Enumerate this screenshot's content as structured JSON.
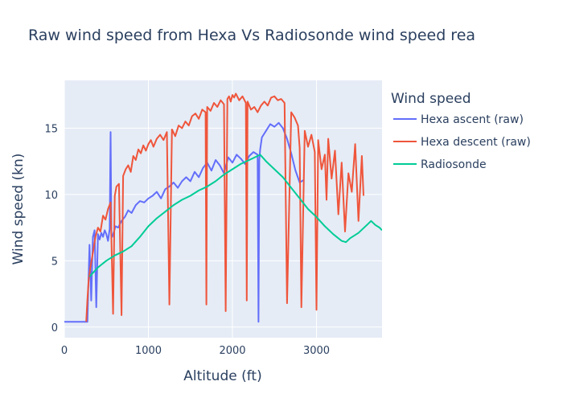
{
  "chart_data": {
    "type": "line",
    "title": "Raw wind speed from Hexa Vs Radiosonde wind speed rea",
    "xlabel": "Altitude (ft)",
    "ylabel": "Wind speed (kn)",
    "xlim": [
      0,
      3780
    ],
    "ylim": [
      -0.8,
      18.6
    ],
    "x_ticks": [
      0,
      1000,
      2000,
      3000
    ],
    "y_ticks": [
      0,
      5,
      10,
      15
    ],
    "grid": true,
    "legend": {
      "title": "Wind speed",
      "position": "right"
    },
    "series": [
      {
        "name": "Hexa ascent (raw)",
        "color": "#636efa",
        "x": [
          0,
          275,
          285,
          300,
          320,
          340,
          360,
          380,
          400,
          420,
          440,
          460,
          480,
          500,
          520,
          540,
          550,
          560,
          570,
          590,
          610,
          640,
          680,
          720,
          760,
          800,
          850,
          900,
          950,
          1000,
          1050,
          1100,
          1150,
          1200,
          1250,
          1300,
          1350,
          1400,
          1450,
          1500,
          1550,
          1600,
          1650,
          1700,
          1750,
          1800,
          1850,
          1900,
          1950,
          2000,
          2050,
          2100,
          2150,
          2200,
          2250,
          2300,
          2310,
          2320,
          2330,
          2350,
          2400,
          2450,
          2500,
          2550,
          2600,
          2650,
          2700,
          2750,
          2800,
          2850
        ],
        "values": [
          0.4,
          0.4,
          3.0,
          6.2,
          2.0,
          6.8,
          7.3,
          1.5,
          7.0,
          6.6,
          7.1,
          6.8,
          7.3,
          7.0,
          6.5,
          7.4,
          14.7,
          7.0,
          6.8,
          7.2,
          7.6,
          7.5,
          8.0,
          8.3,
          8.8,
          8.6,
          9.2,
          9.5,
          9.4,
          9.7,
          9.9,
          10.2,
          9.7,
          10.4,
          10.6,
          10.9,
          10.5,
          11.0,
          11.3,
          11.0,
          11.7,
          11.3,
          12.0,
          12.4,
          11.8,
          12.6,
          12.2,
          11.6,
          12.8,
          12.4,
          13.0,
          12.7,
          12.3,
          12.9,
          13.2,
          13.0,
          0.4,
          12.6,
          13.4,
          14.3,
          14.8,
          15.3,
          15.1,
          15.4,
          15.0,
          14.2,
          13.1,
          11.8,
          10.9,
          11.1
        ]
      },
      {
        "name": "Hexa descent (raw)",
        "color": "#ef553b",
        "x": [
          260,
          275,
          290,
          310,
          340,
          370,
          400,
          430,
          460,
          490,
          520,
          550,
          580,
          600,
          620,
          650,
          680,
          700,
          730,
          760,
          790,
          820,
          850,
          880,
          910,
          940,
          970,
          1000,
          1030,
          1060,
          1100,
          1140,
          1180,
          1220,
          1250,
          1280,
          1320,
          1360,
          1400,
          1440,
          1480,
          1520,
          1560,
          1600,
          1640,
          1680,
          1690,
          1700,
          1740,
          1780,
          1820,
          1860,
          1900,
          1920,
          1940,
          1960,
          1980,
          2000,
          2020,
          2040,
          2080,
          2120,
          2160,
          2170,
          2180,
          2220,
          2260,
          2300,
          2340,
          2380,
          2420,
          2460,
          2500,
          2540,
          2580,
          2620,
          2650,
          2700,
          2740,
          2780,
          2800,
          2820,
          2860,
          2900,
          2940,
          2980,
          3000,
          3020,
          3060,
          3100,
          3120,
          3140,
          3180,
          3220,
          3260,
          3300,
          3340,
          3380,
          3420,
          3460,
          3500,
          3540,
          3560
        ],
        "values": [
          0.4,
          2.1,
          3.6,
          4.5,
          5.6,
          6.8,
          7.5,
          7.2,
          8.4,
          8.1,
          8.9,
          9.4,
          1.0,
          9.9,
          10.6,
          10.8,
          0.9,
          11.4,
          11.9,
          12.2,
          11.7,
          12.9,
          12.6,
          13.4,
          13.1,
          13.7,
          13.3,
          13.8,
          14.1,
          13.6,
          14.2,
          14.5,
          14.1,
          14.7,
          1.7,
          14.9,
          14.4,
          15.2,
          15.0,
          15.5,
          15.2,
          15.9,
          16.1,
          15.7,
          16.4,
          16.2,
          1.7,
          16.6,
          16.3,
          16.9,
          16.6,
          17.1,
          16.8,
          1.2,
          17.2,
          17.4,
          17.0,
          17.5,
          17.3,
          17.6,
          17.1,
          17.4,
          16.9,
          2.0,
          17.0,
          16.4,
          16.6,
          16.2,
          16.7,
          17.0,
          16.7,
          17.3,
          17.4,
          17.1,
          17.2,
          16.9,
          1.8,
          16.2,
          15.8,
          15.2,
          13.5,
          1.5,
          14.8,
          13.6,
          14.5,
          13.2,
          1.3,
          14.1,
          11.9,
          13.0,
          9.6,
          14.2,
          11.2,
          13.3,
          8.5,
          12.4,
          7.2,
          11.6,
          10.2,
          13.8,
          8.0,
          12.9,
          9.9
        ]
      },
      {
        "name": "Radiosonde",
        "color": "#00cc96",
        "x": [
          300,
          400,
          500,
          600,
          700,
          800,
          900,
          1000,
          1100,
          1200,
          1300,
          1400,
          1500,
          1600,
          1700,
          1800,
          1900,
          2000,
          2100,
          2200,
          2300,
          2330,
          2400,
          2500,
          2600,
          2700,
          2800,
          2900,
          3000,
          3100,
          3200,
          3300,
          3350,
          3400,
          3500,
          3550,
          3600,
          3650,
          3700,
          3750,
          3780
        ],
        "values": [
          3.8,
          4.5,
          5.0,
          5.4,
          5.7,
          6.1,
          6.8,
          7.6,
          8.2,
          8.7,
          9.2,
          9.6,
          9.9,
          10.3,
          10.6,
          11.0,
          11.5,
          11.9,
          12.3,
          12.6,
          12.9,
          13.0,
          12.5,
          11.9,
          11.3,
          10.5,
          9.7,
          8.9,
          8.3,
          7.6,
          7.0,
          6.5,
          6.4,
          6.7,
          7.1,
          7.4,
          7.7,
          8.0,
          7.7,
          7.5,
          7.3
        ]
      }
    ]
  }
}
